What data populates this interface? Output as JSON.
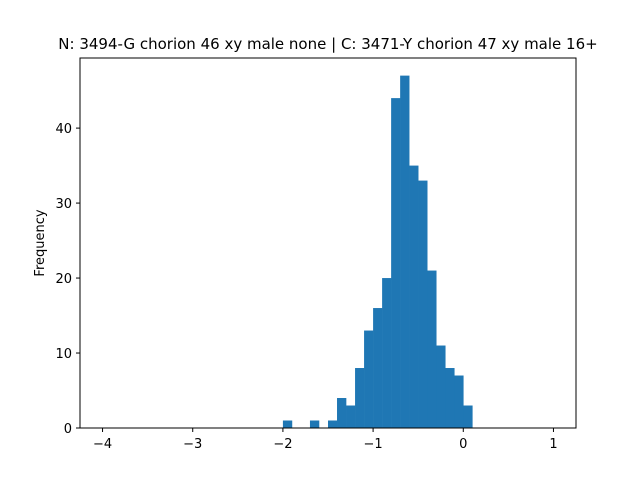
{
  "chart_data": {
    "type": "bar",
    "title": "N: 3494-G chorion 46 xy male none | C: 3471-Y chorion 47 xy male 16+",
    "xlabel": "",
    "ylabel": "Frequency",
    "xlim": [
      -4.25,
      1.25
    ],
    "ylim": [
      0,
      49.35
    ],
    "xticks": [
      -4,
      -3,
      -2,
      -1,
      0,
      1
    ],
    "xtick_labels": [
      "−4",
      "−3",
      "−2",
      "−1",
      "0",
      "1"
    ],
    "yticks": [
      0,
      10,
      20,
      30,
      40
    ],
    "ytick_labels": [
      "0",
      "10",
      "20",
      "30",
      "40"
    ],
    "bin_width": 0.1,
    "bin_starts": [
      -2.0,
      -1.9,
      -1.8,
      -1.7,
      -1.6,
      -1.5,
      -1.4,
      -1.3,
      -1.2,
      -1.1,
      -1.0,
      -0.9,
      -0.8,
      -0.7,
      -0.6,
      -0.5,
      -0.4,
      -0.3,
      -0.2,
      -0.1,
      0.0
    ],
    "values": [
      1,
      0,
      0,
      1,
      0,
      1,
      4,
      3,
      8,
      13,
      16,
      20,
      44,
      47,
      35,
      33,
      21,
      11,
      8,
      7,
      3
    ],
    "bar_color": "#1f77b4",
    "grid": false,
    "legend": "none"
  }
}
